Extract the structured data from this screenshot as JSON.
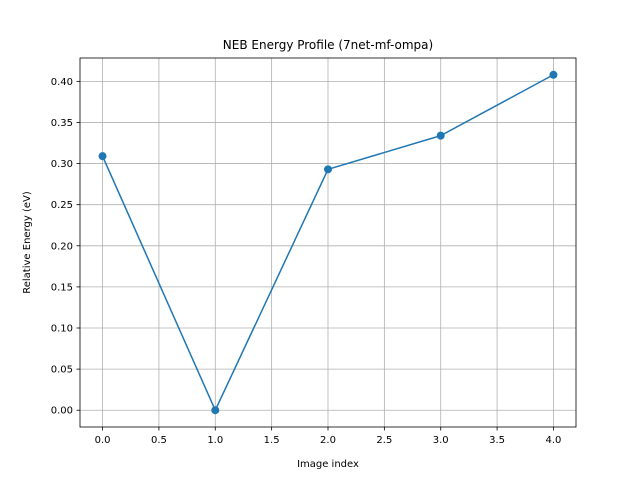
{
  "chart_data": {
    "type": "line",
    "title": "NEB Energy Profile (7net-mf-ompa)",
    "xlabel": "Image index",
    "ylabel": "Relative Energy (eV)",
    "x": [
      0,
      1,
      2,
      3,
      4
    ],
    "series": [
      {
        "values": [
          0.309,
          0.0,
          0.293,
          0.334,
          0.408
        ],
        "color": "#1f77b4",
        "marker": "circle"
      }
    ],
    "xlim": [
      -0.2,
      4.2
    ],
    "ylim": [
      -0.0204,
      0.4284
    ],
    "xticks": [
      0.0,
      0.5,
      1.0,
      1.5,
      2.0,
      2.5,
      3.0,
      3.5,
      4.0
    ],
    "xtick_labels": [
      "0.0",
      "0.5",
      "1.0",
      "1.5",
      "2.0",
      "2.5",
      "3.0",
      "3.5",
      "4.0"
    ],
    "yticks": [
      0.0,
      0.05,
      0.1,
      0.15,
      0.2,
      0.25,
      0.3,
      0.35,
      0.4
    ],
    "ytick_labels": [
      "0.00",
      "0.05",
      "0.10",
      "0.15",
      "0.20",
      "0.25",
      "0.30",
      "0.35",
      "0.40"
    ],
    "grid": true,
    "colors": {
      "grid": "#b0b0b0",
      "axes": "#000000"
    }
  }
}
